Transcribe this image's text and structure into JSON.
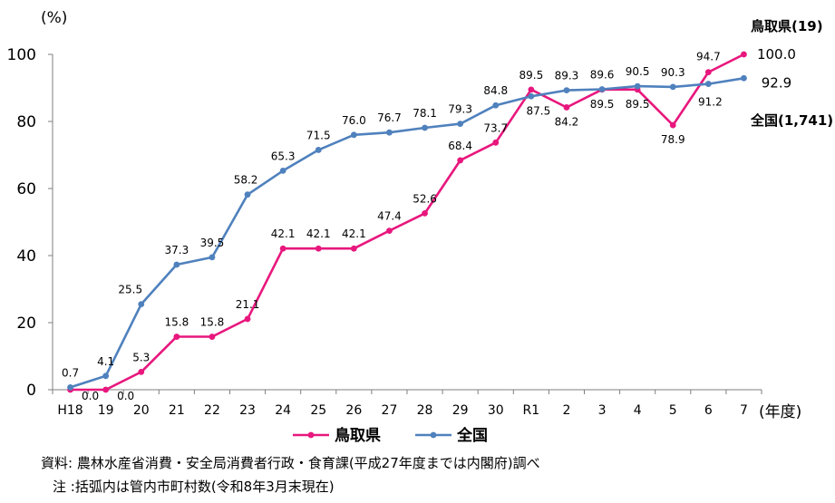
{
  "chart_data": {
    "type": "line",
    "yunit": "(%)",
    "xunit": "(年度)",
    "ylim": [
      0,
      100
    ],
    "yticks": [
      0,
      20,
      40,
      60,
      80,
      100
    ],
    "categories": [
      "H18",
      "19",
      "20",
      "21",
      "22",
      "23",
      "24",
      "25",
      "26",
      "27",
      "28",
      "29",
      "30",
      "R1",
      "2",
      "3",
      "4",
      "5",
      "6",
      "7"
    ],
    "grid": false,
    "legend_position": "bottom",
    "series": [
      {
        "name": "鳥取県",
        "color": "#e8177d",
        "values": [
          0.0,
          0.0,
          5.3,
          15.8,
          15.8,
          21.1,
          42.1,
          42.1,
          42.1,
          47.4,
          52.6,
          68.4,
          73.7,
          89.5,
          84.2,
          89.5,
          89.5,
          78.9,
          94.7,
          100.0
        ],
        "labels": [
          "0.0",
          "0.0",
          "5.3",
          "15.8",
          "15.8",
          "21.1",
          "42.1",
          "42.1",
          "42.1",
          "47.4",
          "52.6",
          "68.4",
          "73.7",
          "89.5",
          "84.2",
          "89.5",
          "89.5",
          "78.9",
          "94.7",
          "100.0"
        ],
        "side_label": "鳥取県(19)"
      },
      {
        "name": "全国",
        "color": "#4f81bd",
        "values": [
          0.7,
          4.1,
          25.5,
          37.3,
          39.5,
          58.2,
          65.3,
          71.5,
          76.0,
          76.7,
          78.1,
          79.3,
          84.8,
          87.5,
          89.3,
          89.6,
          90.5,
          90.3,
          91.2,
          92.9
        ],
        "labels": [
          "0.7",
          "4.1",
          "25.5",
          "37.3",
          "39.5",
          "58.2",
          "65.3",
          "71.5",
          "76.0",
          "76.7",
          "78.1",
          "79.3",
          "84.8",
          "87.5",
          "89.3",
          "89.6",
          "90.5",
          "90.3",
          "91.2",
          "92.9"
        ],
        "side_label": "全国(1,741)"
      }
    ]
  },
  "notes": [
    "資料: 農林水産省消費・安全局消費者行政・食育課(平成27年度までは内閣府)調べ",
    "注 :括弧内は管内市町村数(令和8年3月末現在)"
  ]
}
